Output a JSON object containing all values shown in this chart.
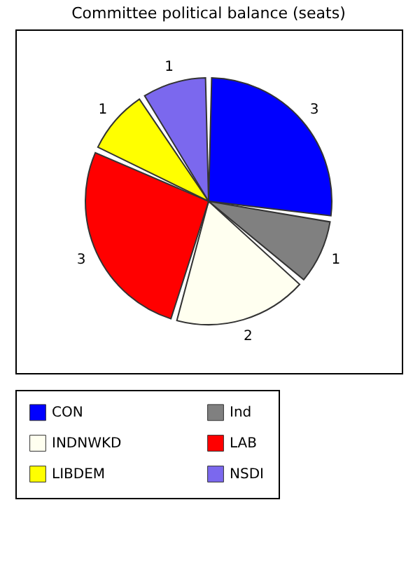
{
  "chart_data": {
    "type": "pie",
    "title": "Committee political balance (seats)",
    "categories": [
      "CON",
      "Ind",
      "INDNWKD",
      "LAB",
      "LIBDEM",
      "NSDI"
    ],
    "values": [
      3,
      1,
      2,
      3,
      1,
      1
    ],
    "colors": [
      "#0000ff",
      "#808080",
      "#fffff0",
      "#ff0000",
      "#ffff00",
      "#7b68ee"
    ],
    "data_labels": true,
    "legend": "bottom"
  }
}
